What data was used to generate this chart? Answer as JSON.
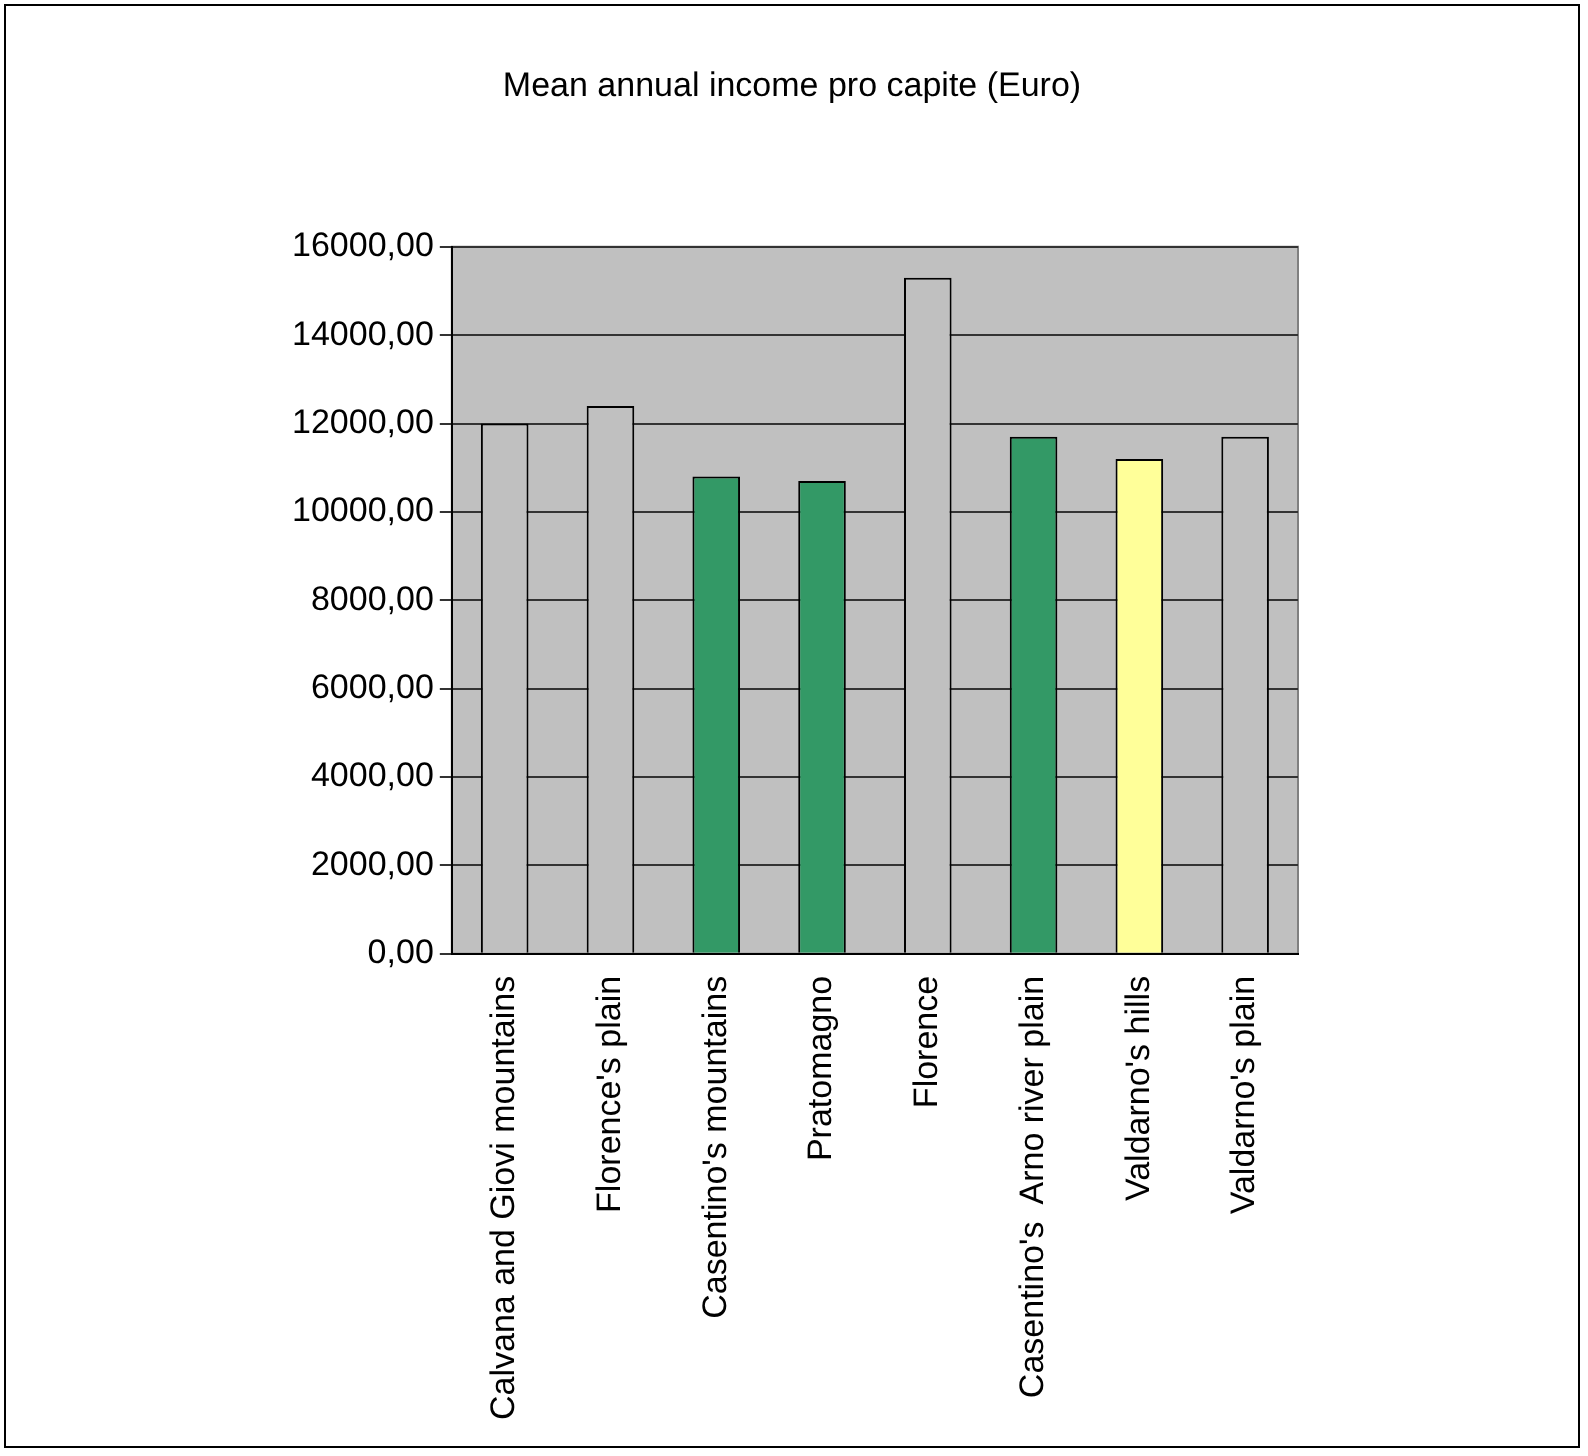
{
  "chart_data": {
    "type": "bar",
    "title": "Mean annual income pro capite (Euro)",
    "categories": [
      "Calvana and Giovi mountains",
      "Florence's plain",
      "Casentino's mountains",
      "Pratomagno",
      "Florence",
      "Casentino's  Arno river plain",
      "Valdarno's hills",
      "Valdarno's plain"
    ],
    "values": [
      12000,
      12400,
      10800,
      10700,
      15300,
      11700,
      11200,
      11700
    ],
    "colors": [
      "#c0c0c0",
      "#c0c0c0",
      "#339966",
      "#339966",
      "#c0c0c0",
      "#339966",
      "#ffff99",
      "#c0c0c0"
    ],
    "ylim": [
      0,
      16000
    ],
    "yticks": [
      {
        "value": 0,
        "label": "0,00"
      },
      {
        "value": 2000,
        "label": "2000,00"
      },
      {
        "value": 4000,
        "label": "4000,00"
      },
      {
        "value": 6000,
        "label": "6000,00"
      },
      {
        "value": 8000,
        "label": "8000,00"
      },
      {
        "value": 10000,
        "label": "10000,00"
      },
      {
        "value": 12000,
        "label": "12000,00"
      },
      {
        "value": 14000,
        "label": "14000,00"
      },
      {
        "value": 16000,
        "label": "16000,00"
      }
    ],
    "grid": "y",
    "legend": false
  }
}
